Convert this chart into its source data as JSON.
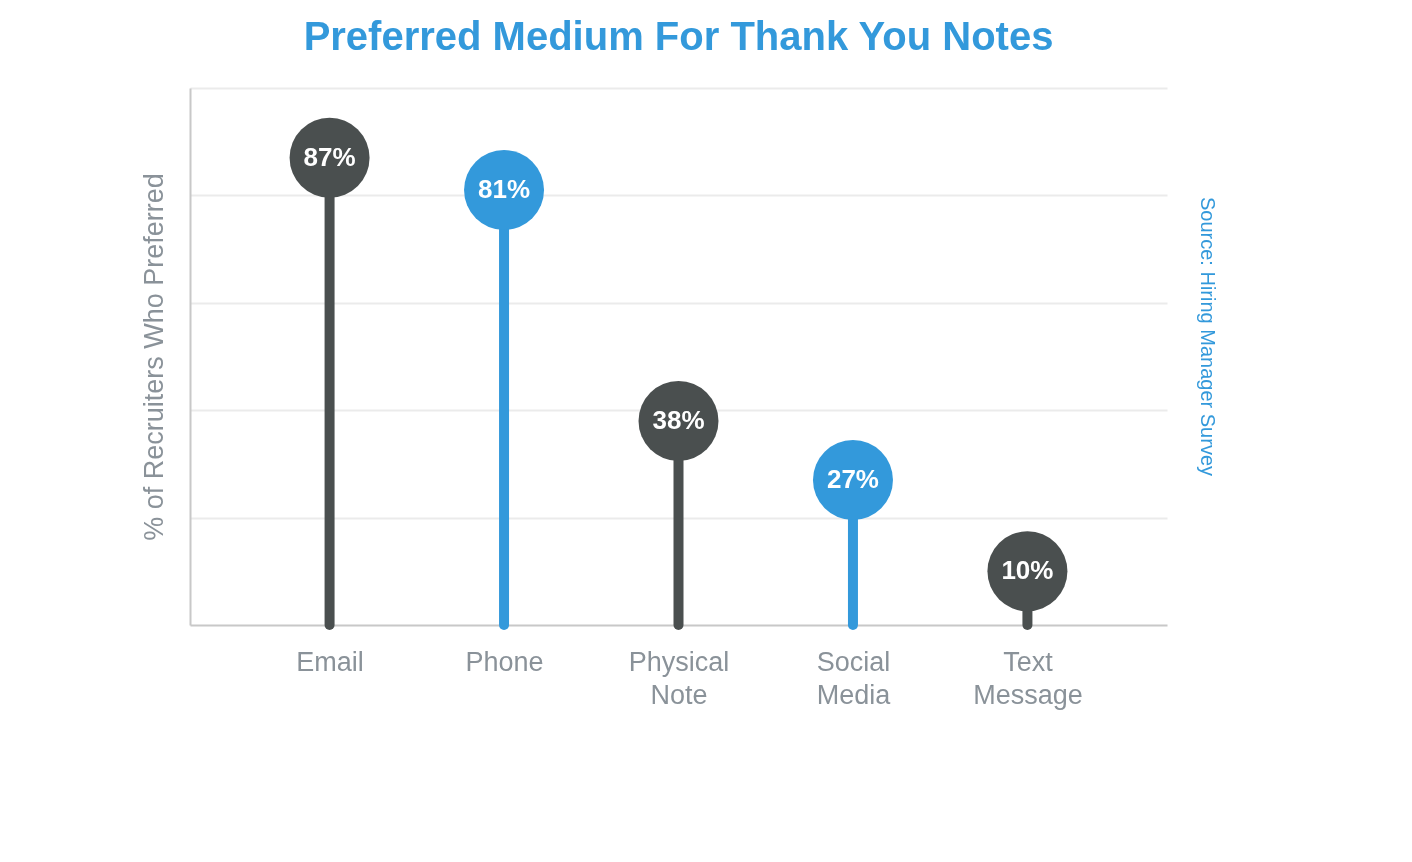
{
  "chart_data": {
    "type": "lollipop",
    "title": "Preferred Medium For Thank You Notes",
    "ylabel": "% of Recruiters Who Preferred",
    "annotations": [
      "Source: Hiring Manager Survey"
    ],
    "categories": [
      "Email",
      "Phone",
      "Physical Note",
      "Social Media",
      "Text Message"
    ],
    "values": [
      87,
      81,
      38,
      27,
      10
    ],
    "colors": [
      "#4a4f4f",
      "#3399db",
      "#4a4f4f",
      "#3399db",
      "#4a4f4f"
    ],
    "value_labels": [
      "87%",
      "81%",
      "38%",
      "27%",
      "10%"
    ],
    "ylim": [
      0,
      100
    ],
    "yticks": [
      {
        "value": 20,
        "label": null
      },
      {
        "value": 40,
        "label": null
      },
      {
        "value": 60,
        "label": null
      },
      {
        "value": 80,
        "label": null
      },
      {
        "value": 100,
        "label": null
      }
    ],
    "grid": "y",
    "marker": "circle",
    "tick_labels": "x"
  }
}
